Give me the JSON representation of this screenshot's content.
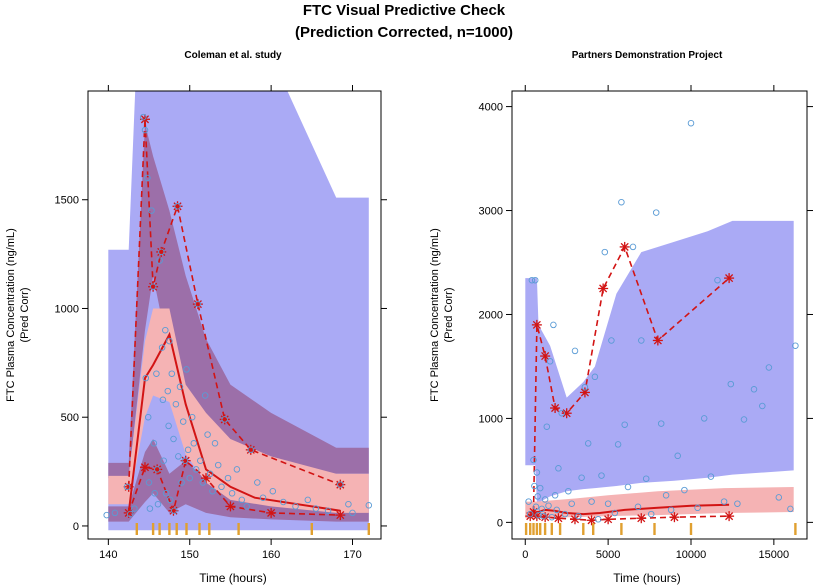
{
  "figure": {
    "title_line1": "FTC Visual Predictive Check",
    "title_line2": "(Prediction Corrected, n=1000)"
  },
  "colors": {
    "pi_band": "#aaaaf5",
    "outer_band": "#9c6fa9",
    "median_band": "#f5b3b4",
    "median_line": "#d21414",
    "percentile_line": "#d21414",
    "observed": "#5a9bd5",
    "rug": "#e0a030",
    "axis": "#000000"
  },
  "chart_data": [
    {
      "type": "scatter",
      "title": "Coleman et al. study",
      "xlabel": "Time (hours)",
      "ylabel_line1": "FTC Plasma Concentration (ng/mL)",
      "ylabel_line2": "(Pred Corr)",
      "xlim": [
        137.5,
        173.5
      ],
      "ylim": [
        -60,
        2000
      ],
      "x_ticks": [
        140,
        150,
        160,
        170
      ],
      "y_ticks": [
        0,
        500,
        1000,
        1500
      ],
      "x_tick_labels": [
        "140",
        "150",
        "160",
        "170"
      ],
      "y_tick_labels": [
        "0",
        "500",
        "1000",
        "1500"
      ],
      "bands": {
        "pi_outer": [
          [
            140,
            -20,
            1270
          ],
          [
            142.5,
            -20,
            1270
          ],
          [
            143.3,
            -20,
            2000
          ],
          [
            145,
            -20,
            2000
          ],
          [
            148,
            -20,
            2000
          ],
          [
            155,
            -20,
            2000
          ],
          [
            162,
            -20,
            2000
          ],
          [
            168,
            -20,
            1510
          ],
          [
            172,
            -20,
            1510
          ]
        ],
        "upper_ci": [
          [
            140,
            220,
            290
          ],
          [
            142.5,
            220,
            290
          ],
          [
            144.5,
            900,
            1850
          ],
          [
            145.5,
            1150,
            1700
          ],
          [
            147.5,
            780,
            1450
          ],
          [
            149.5,
            560,
            1150
          ],
          [
            152,
            400,
            860
          ],
          [
            155,
            330,
            650
          ],
          [
            160,
            280,
            520
          ],
          [
            168,
            240,
            360
          ],
          [
            172,
            240,
            360
          ]
        ],
        "median_ci": [
          [
            140,
            100,
            230
          ],
          [
            142.5,
            100,
            230
          ],
          [
            144.5,
            500,
            850
          ],
          [
            145.5,
            600,
            1000
          ],
          [
            147.5,
            570,
            1000
          ],
          [
            149.5,
            330,
            650
          ],
          [
            152,
            200,
            520
          ],
          [
            155,
            120,
            400
          ],
          [
            160,
            90,
            320
          ],
          [
            168,
            60,
            240
          ],
          [
            172,
            60,
            240
          ]
        ],
        "lower_ci": [
          [
            140,
            20,
            90
          ],
          [
            142.5,
            20,
            90
          ],
          [
            144.5,
            110,
            340
          ],
          [
            145.5,
            150,
            400
          ],
          [
            147.5,
            60,
            240
          ],
          [
            149.5,
            100,
            300
          ],
          [
            152,
            60,
            210
          ],
          [
            155,
            40,
            170
          ],
          [
            160,
            30,
            140
          ],
          [
            168,
            20,
            110
          ],
          [
            172,
            20,
            110
          ]
        ]
      },
      "observed_median": [
        [
          142.5,
          60
        ],
        [
          144.5,
          680
        ],
        [
          145.5,
          740
        ],
        [
          147.5,
          880
        ],
        [
          149.5,
          560
        ],
        [
          152,
          260
        ],
        [
          155,
          180
        ],
        [
          158,
          130
        ],
        [
          168.5,
          70
        ]
      ],
      "observed_upper": [
        [
          142.5,
          180
        ],
        [
          144.5,
          1870
        ],
        [
          145.5,
          1100
        ],
        [
          146.5,
          1260
        ],
        [
          148.5,
          1470
        ],
        [
          151,
          1020
        ],
        [
          154.3,
          490
        ],
        [
          157.5,
          350
        ],
        [
          168.5,
          190
        ]
      ],
      "observed_lower": [
        [
          142.5,
          60
        ],
        [
          144.5,
          270
        ],
        [
          146,
          260
        ],
        [
          148,
          70
        ],
        [
          149.5,
          300
        ],
        [
          152,
          220
        ],
        [
          155,
          90
        ],
        [
          160,
          60
        ],
        [
          168.5,
          50
        ]
      ],
      "observed_points": [
        [
          139.8,
          50
        ],
        [
          140.8,
          60
        ],
        [
          142.3,
          180
        ],
        [
          142.7,
          55
        ],
        [
          143.2,
          80
        ],
        [
          144.3,
          1880
        ],
        [
          144.5,
          1820
        ],
        [
          144.6,
          680
        ],
        [
          144.8,
          1600
        ],
        [
          144.9,
          500
        ],
        [
          145.0,
          200
        ],
        [
          145.1,
          80
        ],
        [
          145.3,
          1450
        ],
        [
          145.5,
          1100
        ],
        [
          145.6,
          380
        ],
        [
          145.7,
          150
        ],
        [
          145.9,
          700
        ],
        [
          146.0,
          260
        ],
        [
          146.1,
          100
        ],
        [
          146.3,
          1220
        ],
        [
          146.5,
          1260
        ],
        [
          146.6,
          820
        ],
        [
          146.7,
          580
        ],
        [
          146.8,
          300
        ],
        [
          147.0,
          900
        ],
        [
          147.1,
          150
        ],
        [
          147.3,
          620
        ],
        [
          147.4,
          460
        ],
        [
          147.5,
          850
        ],
        [
          147.6,
          120
        ],
        [
          147.8,
          700
        ],
        [
          148.0,
          400
        ],
        [
          148.1,
          70
        ],
        [
          148.3,
          560
        ],
        [
          148.5,
          1470
        ],
        [
          148.6,
          320
        ],
        [
          148.8,
          640
        ],
        [
          149.0,
          200
        ],
        [
          149.2,
          480
        ],
        [
          149.4,
          300
        ],
        [
          149.6,
          720
        ],
        [
          149.8,
          350
        ],
        [
          150.0,
          220
        ],
        [
          150.3,
          500
        ],
        [
          150.5,
          380
        ],
        [
          150.8,
          260
        ],
        [
          151.0,
          1020
        ],
        [
          151.3,
          300
        ],
        [
          151.6,
          200
        ],
        [
          151.9,
          600
        ],
        [
          152.2,
          420
        ],
        [
          152.5,
          240
        ],
        [
          152.8,
          160
        ],
        [
          153.1,
          380
        ],
        [
          153.5,
          280
        ],
        [
          153.9,
          180
        ],
        [
          154.3,
          490
        ],
        [
          154.7,
          220
        ],
        [
          155.2,
          150
        ],
        [
          155.8,
          260
        ],
        [
          156.4,
          120
        ],
        [
          157.0,
          90
        ],
        [
          157.5,
          350
        ],
        [
          158.3,
          200
        ],
        [
          159.0,
          130
        ],
        [
          160.2,
          160
        ],
        [
          161.5,
          110
        ],
        [
          163.0,
          90
        ],
        [
          164.5,
          120
        ],
        [
          165.5,
          80
        ],
        [
          167.0,
          70
        ],
        [
          168.5,
          190
        ],
        [
          169.5,
          100
        ],
        [
          170.0,
          60
        ],
        [
          172.0,
          95
        ]
      ],
      "rug": [
        143.5,
        145.5,
        146.3,
        147.5,
        148.4,
        149.6,
        151.2,
        152.4,
        156.0,
        165.0,
        172.0
      ]
    },
    {
      "type": "scatter",
      "title": "Partners Demonstration Project",
      "xlabel": "Time (hours)",
      "ylabel_line1": "FTC Plasma Concentration (ng/mL)",
      "ylabel_line2": "(Pred Corr)",
      "xlim": [
        -800,
        17000
      ],
      "ylim": [
        -160,
        4150
      ],
      "x_ticks": [
        0,
        5000,
        10000,
        15000
      ],
      "y_ticks": [
        0,
        1000,
        2000,
        3000,
        4000
      ],
      "x_tick_labels": [
        "0",
        "5000",
        "10000",
        "15000"
      ],
      "y_tick_labels": [
        "0",
        "1000",
        "2000",
        "3000",
        "4000"
      ],
      "bands": {
        "pi_outer": [
          [
            0,
            550,
            2350
          ],
          [
            600,
            550,
            2350
          ],
          [
            700,
            190,
            2350
          ],
          [
            800,
            190,
            1900
          ],
          [
            1500,
            250,
            1700
          ],
          [
            2500,
            300,
            1200
          ],
          [
            3500,
            320,
            1350
          ],
          [
            4200,
            330,
            1500
          ],
          [
            5500,
            350,
            2200
          ],
          [
            7000,
            380,
            2600
          ],
          [
            9000,
            400,
            2700
          ],
          [
            11000,
            430,
            2800
          ],
          [
            12500,
            460,
            2900
          ],
          [
            16200,
            500,
            2900
          ]
        ],
        "median_ci": [
          [
            0,
            40,
            200
          ],
          [
            700,
            40,
            200
          ],
          [
            1500,
            50,
            210
          ],
          [
            3000,
            50,
            230
          ],
          [
            5000,
            60,
            260
          ],
          [
            8000,
            70,
            300
          ],
          [
            12000,
            90,
            330
          ],
          [
            16200,
            100,
            340
          ]
        ]
      },
      "observed_median": [
        [
          300,
          100
        ],
        [
          600,
          90
        ],
        [
          1200,
          120
        ],
        [
          1800,
          110
        ],
        [
          2500,
          90
        ],
        [
          3500,
          80
        ],
        [
          4500,
          90
        ],
        [
          6000,
          120
        ],
        [
          8000,
          140
        ],
        [
          10000,
          160
        ],
        [
          12300,
          170
        ]
      ],
      "observed_upper": [
        [
          500,
          100
        ],
        [
          700,
          1900
        ],
        [
          1200,
          1600
        ],
        [
          1800,
          1100
        ],
        [
          2500,
          1050
        ],
        [
          3600,
          1250
        ],
        [
          4700,
          2250
        ],
        [
          6000,
          2650
        ],
        [
          8000,
          1750
        ],
        [
          12300,
          2350
        ]
      ],
      "observed_lower": [
        [
          300,
          60
        ],
        [
          700,
          60
        ],
        [
          1200,
          50
        ],
        [
          2000,
          40
        ],
        [
          3000,
          30
        ],
        [
          4000,
          20
        ],
        [
          5000,
          30
        ],
        [
          7000,
          40
        ],
        [
          9000,
          50
        ],
        [
          12300,
          60
        ]
      ],
      "observed_points": [
        [
          200,
          200
        ],
        [
          300,
          80
        ],
        [
          400,
          2330
        ],
        [
          500,
          600
        ],
        [
          550,
          350
        ],
        [
          600,
          2330
        ],
        [
          650,
          150
        ],
        [
          700,
          480
        ],
        [
          750,
          250
        ],
        [
          800,
          70
        ],
        [
          900,
          330
        ],
        [
          1000,
          130
        ],
        [
          1100,
          60
        ],
        [
          1200,
          220
        ],
        [
          1300,
          920
        ],
        [
          1400,
          160
        ],
        [
          1500,
          1550
        ],
        [
          1600,
          50
        ],
        [
          1700,
          1900
        ],
        [
          1800,
          260
        ],
        [
          1900,
          120
        ],
        [
          2000,
          520
        ],
        [
          2200,
          1050
        ],
        [
          2400,
          80
        ],
        [
          2600,
          300
        ],
        [
          2800,
          180
        ],
        [
          3000,
          1650
        ],
        [
          3200,
          60
        ],
        [
          3400,
          430
        ],
        [
          3600,
          1300
        ],
        [
          3800,
          760
        ],
        [
          4000,
          200
        ],
        [
          4200,
          1400
        ],
        [
          4400,
          30
        ],
        [
          4600,
          450
        ],
        [
          4800,
          2600
        ],
        [
          5000,
          180
        ],
        [
          5200,
          1750
        ],
        [
          5400,
          90
        ],
        [
          5600,
          750
        ],
        [
          5800,
          3080
        ],
        [
          6000,
          940
        ],
        [
          6200,
          340
        ],
        [
          6500,
          2650
        ],
        [
          6800,
          150
        ],
        [
          7000,
          1750
        ],
        [
          7300,
          420
        ],
        [
          7600,
          80
        ],
        [
          7900,
          2980
        ],
        [
          8200,
          950
        ],
        [
          8500,
          260
        ],
        [
          8800,
          120
        ],
        [
          9200,
          640
        ],
        [
          9600,
          310
        ],
        [
          10000,
          3840
        ],
        [
          10400,
          140
        ],
        [
          10800,
          1000
        ],
        [
          11200,
          440
        ],
        [
          11600,
          2330
        ],
        [
          12000,
          200
        ],
        [
          12400,
          1330
        ],
        [
          12800,
          180
        ],
        [
          13200,
          990
        ],
        [
          13800,
          1280
        ],
        [
          14300,
          1120
        ],
        [
          14700,
          1490
        ],
        [
          15300,
          240
        ],
        [
          16000,
          130
        ],
        [
          16300,
          1700
        ]
      ],
      "rug": [
        50,
        300,
        500,
        700,
        900,
        1200,
        1600,
        2100,
        3500,
        4100,
        5800,
        7800,
        10000,
        16300
      ]
    }
  ]
}
